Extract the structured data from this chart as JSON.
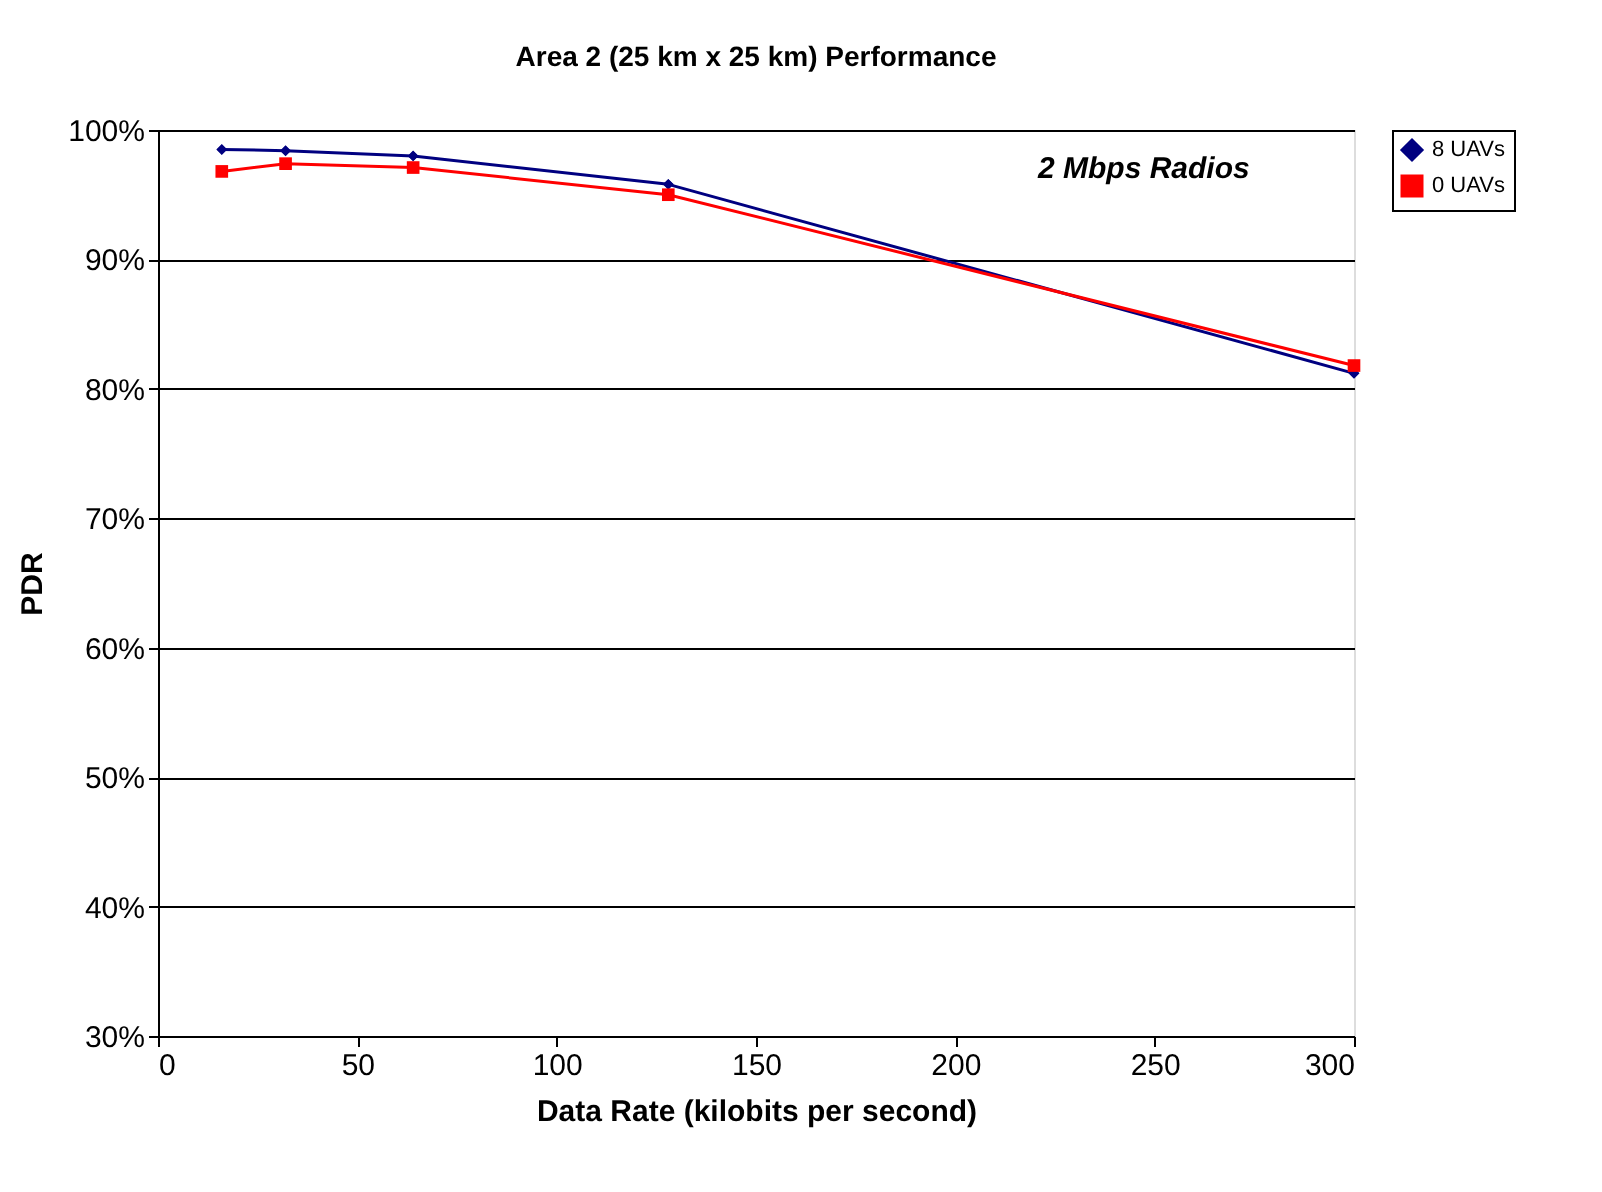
{
  "chart_data": {
    "type": "line",
    "title": "Area 2 (25 km x 25 km) Performance",
    "xlabel": "Data Rate (kilobits per second)",
    "ylabel": "PDR",
    "x": [
      16,
      32,
      64,
      128,
      300
    ],
    "series": [
      {
        "name": "8 UAVs",
        "color": "#000080",
        "marker": "diamond",
        "values": [
          98.5,
          98.4,
          98.0,
          95.8,
          81.2
        ]
      },
      {
        "name": "0 UAVs",
        "color": "#ff0000",
        "marker": "square",
        "values": [
          96.8,
          97.4,
          97.1,
          95.0,
          81.8
        ]
      }
    ],
    "xlim": [
      0,
      300
    ],
    "xticks": [
      0,
      50,
      100,
      150,
      200,
      250,
      300
    ],
    "ylim": [
      30,
      100
    ],
    "yticks": [
      {
        "value": 30,
        "label": "30%"
      },
      {
        "value": 40,
        "label": "40%"
      },
      {
        "value": 50,
        "label": "50%"
      },
      {
        "value": 60,
        "label": "60%"
      },
      {
        "value": 70,
        "label": "70%"
      },
      {
        "value": 80,
        "label": "80%"
      },
      {
        "value": 90,
        "label": "90%"
      },
      {
        "value": 100,
        "label": "100%"
      }
    ],
    "grid": "y",
    "legend": "right",
    "line_style": "solid",
    "annotations": [
      "2 Mbps Radios"
    ]
  }
}
